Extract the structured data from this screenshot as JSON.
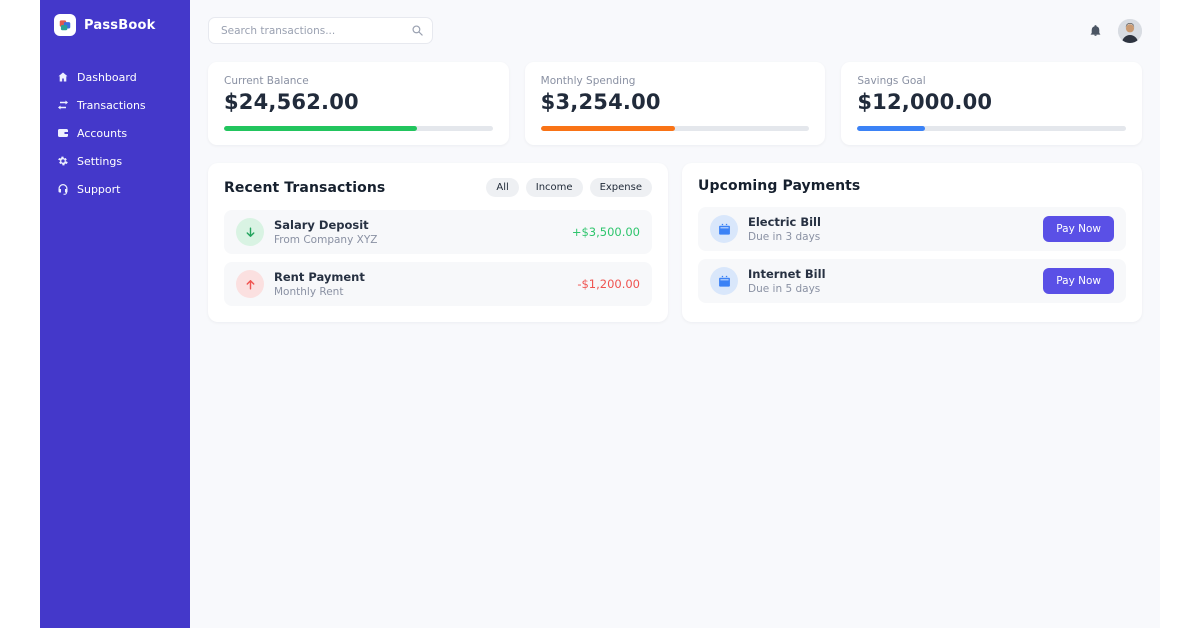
{
  "app": {
    "name": "PassBook"
  },
  "sidebar": {
    "logo_text": "PassBook",
    "items": [
      {
        "label": "Dashboard",
        "icon": "home-icon"
      },
      {
        "label": "Transactions",
        "icon": "exchange-icon"
      },
      {
        "label": "Accounts",
        "icon": "wallet-icon"
      },
      {
        "label": "Settings",
        "icon": "gear-icon"
      },
      {
        "label": "Support",
        "icon": "headset-icon"
      }
    ]
  },
  "topbar": {
    "search_placeholder": "Search transactions..."
  },
  "stats": [
    {
      "label": "Current Balance",
      "value": "$24,562.00",
      "progress_percent": 72,
      "bar_color": "#22c55e"
    },
    {
      "label": "Monthly Spending",
      "value": "$3,254.00",
      "progress_percent": 50,
      "bar_color": "#f97316"
    },
    {
      "label": "Savings Goal",
      "value": "$12,000.00",
      "progress_percent": 25,
      "bar_color": "#3b82f6"
    }
  ],
  "transactions": {
    "title": "Recent Transactions",
    "filters": [
      "All",
      "Income",
      "Expense"
    ],
    "items": [
      {
        "title": "Salary Deposit",
        "subtitle": "From Company XYZ",
        "amount": "+$3,500.00",
        "direction": "income"
      },
      {
        "title": "Rent Payment",
        "subtitle": "Monthly Rent",
        "amount": "-$1,200.00",
        "direction": "expense"
      }
    ]
  },
  "payments": {
    "title": "Upcoming Payments",
    "button_label": "Pay Now",
    "items": [
      {
        "title": "Electric Bill",
        "subtitle": "Due in 3 days"
      },
      {
        "title": "Internet Bill",
        "subtitle": "Due in 5 days"
      }
    ]
  },
  "colors": {
    "sidebar": "#4438ca",
    "accent_button": "#5a50e6",
    "income_green": "#2fc56d",
    "expense_red": "#ef5350",
    "balance_bar": "#22c55e",
    "spending_bar": "#f97316",
    "savings_bar": "#3b82f6"
  }
}
